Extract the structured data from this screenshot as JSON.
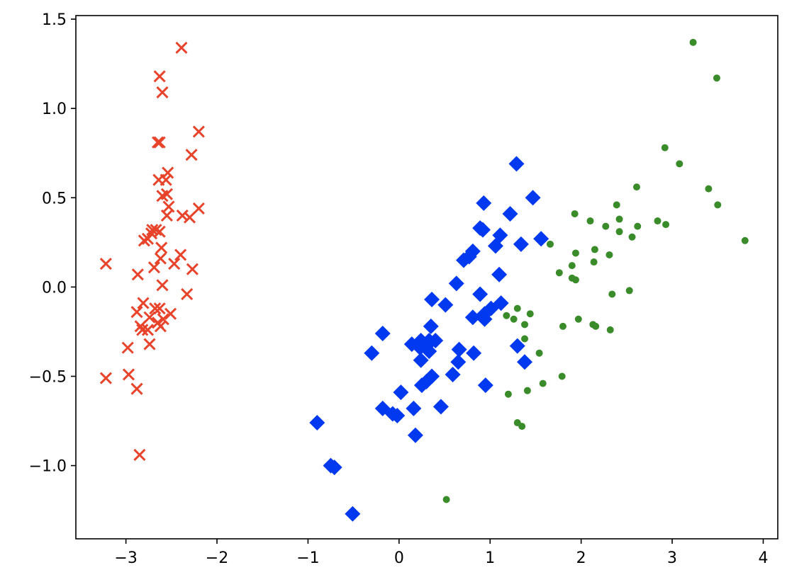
{
  "chart_data": {
    "type": "scatter",
    "title": "",
    "xlabel": "",
    "ylabel": "",
    "xlim": [
      -3.55,
      4.16
    ],
    "ylim": [
      -1.41,
      1.52
    ],
    "xticks": [
      {
        "value": -3,
        "label": "−3"
      },
      {
        "value": -2,
        "label": "−2"
      },
      {
        "value": -1,
        "label": "−1"
      },
      {
        "value": 0,
        "label": "0"
      },
      {
        "value": 1,
        "label": "1"
      },
      {
        "value": 2,
        "label": "2"
      },
      {
        "value": 3,
        "label": "3"
      },
      {
        "value": 4,
        "label": "4"
      }
    ],
    "yticks": [
      {
        "value": -1.0,
        "label": "−1.0"
      },
      {
        "value": -0.5,
        "label": "−0.5"
      },
      {
        "value": 0.0,
        "label": "0.0"
      },
      {
        "value": 0.5,
        "label": "0.5"
      },
      {
        "value": 1.0,
        "label": "1.0"
      },
      {
        "value": 1.5,
        "label": "1.5"
      }
    ],
    "grid": false,
    "series": [
      {
        "marker": "x",
        "color": "#e8432b",
        "points": [
          [
            -2.39,
            1.34
          ],
          [
            -2.63,
            1.18
          ],
          [
            -2.6,
            1.09
          ],
          [
            -2.65,
            0.81
          ],
          [
            -2.63,
            0.81
          ],
          [
            -2.2,
            0.87
          ],
          [
            -2.28,
            0.74
          ],
          [
            -2.54,
            0.64
          ],
          [
            -2.64,
            0.6
          ],
          [
            -2.56,
            0.6
          ],
          [
            -2.6,
            0.51
          ],
          [
            -2.55,
            0.52
          ],
          [
            -2.53,
            0.45
          ],
          [
            -2.55,
            0.4
          ],
          [
            -2.38,
            0.4
          ],
          [
            -2.3,
            0.39
          ],
          [
            -2.2,
            0.44
          ],
          [
            -2.63,
            0.31
          ],
          [
            -2.67,
            0.32
          ],
          [
            -2.71,
            0.32
          ],
          [
            -2.72,
            0.3
          ],
          [
            -2.76,
            0.27
          ],
          [
            -2.8,
            0.26
          ],
          [
            -2.61,
            0.22
          ],
          [
            -2.4,
            0.18
          ],
          [
            -2.62,
            0.16
          ],
          [
            -2.47,
            0.13
          ],
          [
            -2.69,
            0.11
          ],
          [
            -2.27,
            0.1
          ],
          [
            -3.22,
            0.13
          ],
          [
            -2.87,
            0.07
          ],
          [
            -2.6,
            0.01
          ],
          [
            -2.33,
            -0.04
          ],
          [
            -2.68,
            -0.12
          ],
          [
            -2.63,
            -0.12
          ],
          [
            -2.81,
            -0.09
          ],
          [
            -2.88,
            -0.14
          ],
          [
            -2.74,
            -0.17
          ],
          [
            -2.51,
            -0.15
          ],
          [
            -2.59,
            -0.18
          ],
          [
            -2.65,
            -0.2
          ],
          [
            -2.62,
            -0.22
          ],
          [
            -2.84,
            -0.22
          ],
          [
            -2.76,
            -0.24
          ],
          [
            -2.82,
            -0.24
          ],
          [
            -2.74,
            -0.32
          ],
          [
            -2.98,
            -0.34
          ],
          [
            -2.97,
            -0.49
          ],
          [
            -3.22,
            -0.51
          ],
          [
            -2.88,
            -0.57
          ],
          [
            -2.85,
            -0.94
          ]
        ]
      },
      {
        "marker": "D",
        "color": "#0039f0",
        "points": [
          [
            1.29,
            0.69
          ],
          [
            1.47,
            0.5
          ],
          [
            0.93,
            0.47
          ],
          [
            1.22,
            0.41
          ],
          [
            0.89,
            0.33
          ],
          [
            0.92,
            0.32
          ],
          [
            1.11,
            0.29
          ],
          [
            1.56,
            0.27
          ],
          [
            1.34,
            0.24
          ],
          [
            1.06,
            0.23
          ],
          [
            0.81,
            0.2
          ],
          [
            0.77,
            0.17
          ],
          [
            0.71,
            0.15
          ],
          [
            1.1,
            0.07
          ],
          [
            0.63,
            0.02
          ],
          [
            0.89,
            -0.04
          ],
          [
            0.36,
            -0.07
          ],
          [
            1.12,
            -0.09
          ],
          [
            0.51,
            -0.1
          ],
          [
            1.01,
            -0.12
          ],
          [
            0.94,
            -0.15
          ],
          [
            0.81,
            -0.17
          ],
          [
            0.94,
            -0.18
          ],
          [
            -0.18,
            -0.26
          ],
          [
            0.35,
            -0.22
          ],
          [
            0.33,
            -0.3
          ],
          [
            0.24,
            -0.3
          ],
          [
            0.28,
            -0.32
          ],
          [
            0.4,
            -0.3
          ],
          [
            0.3,
            -0.33
          ],
          [
            0.14,
            -0.32
          ],
          [
            0.23,
            -0.34
          ],
          [
            0.33,
            -0.36
          ],
          [
            0.66,
            -0.35
          ],
          [
            1.3,
            -0.33
          ],
          [
            0.82,
            -0.37
          ],
          [
            -0.3,
            -0.37
          ],
          [
            0.24,
            -0.41
          ],
          [
            0.65,
            -0.42
          ],
          [
            1.38,
            -0.42
          ],
          [
            0.59,
            -0.49
          ],
          [
            0.36,
            -0.5
          ],
          [
            0.3,
            -0.53
          ],
          [
            0.25,
            -0.55
          ],
          [
            0.95,
            -0.55
          ],
          [
            0.02,
            -0.59
          ],
          [
            0.46,
            -0.67
          ],
          [
            -0.18,
            -0.68
          ],
          [
            0.16,
            -0.68
          ],
          [
            -0.07,
            -0.71
          ],
          [
            -0.02,
            -0.72
          ],
          [
            0.18,
            -0.83
          ],
          [
            -0.9,
            -0.76
          ],
          [
            -0.75,
            -1.0
          ],
          [
            -0.71,
            -1.01
          ],
          [
            -0.51,
            -1.27
          ]
        ]
      },
      {
        "marker": "o",
        "color": "#3a8c2a",
        "points": [
          [
            3.23,
            1.37
          ],
          [
            3.49,
            1.17
          ],
          [
            2.92,
            0.78
          ],
          [
            3.08,
            0.69
          ],
          [
            2.61,
            0.56
          ],
          [
            3.4,
            0.55
          ],
          [
            2.39,
            0.46
          ],
          [
            3.5,
            0.46
          ],
          [
            1.93,
            0.41
          ],
          [
            2.1,
            0.37
          ],
          [
            2.42,
            0.38
          ],
          [
            2.84,
            0.37
          ],
          [
            2.93,
            0.35
          ],
          [
            2.27,
            0.34
          ],
          [
            2.62,
            0.34
          ],
          [
            2.42,
            0.31
          ],
          [
            2.56,
            0.28
          ],
          [
            3.8,
            0.26
          ],
          [
            1.66,
            0.24
          ],
          [
            2.15,
            0.21
          ],
          [
            1.94,
            0.19
          ],
          [
            2.31,
            0.18
          ],
          [
            2.14,
            0.14
          ],
          [
            1.9,
            0.12
          ],
          [
            1.76,
            0.08
          ],
          [
            1.9,
            0.05
          ],
          [
            1.94,
            0.04
          ],
          [
            2.53,
            -0.02
          ],
          [
            2.34,
            -0.04
          ],
          [
            1.3,
            -0.12
          ],
          [
            1.44,
            -0.15
          ],
          [
            1.18,
            -0.16
          ],
          [
            1.26,
            -0.18
          ],
          [
            1.97,
            -0.18
          ],
          [
            1.38,
            -0.21
          ],
          [
            2.13,
            -0.21
          ],
          [
            2.16,
            -0.22
          ],
          [
            1.8,
            -0.22
          ],
          [
            2.32,
            -0.24
          ],
          [
            1.38,
            -0.29
          ],
          [
            1.54,
            -0.37
          ],
          [
            1.79,
            -0.5
          ],
          [
            1.58,
            -0.54
          ],
          [
            1.41,
            -0.58
          ],
          [
            1.2,
            -0.6
          ],
          [
            1.3,
            -0.76
          ],
          [
            1.35,
            -0.78
          ],
          [
            0.52,
            -1.19
          ]
        ]
      }
    ]
  }
}
